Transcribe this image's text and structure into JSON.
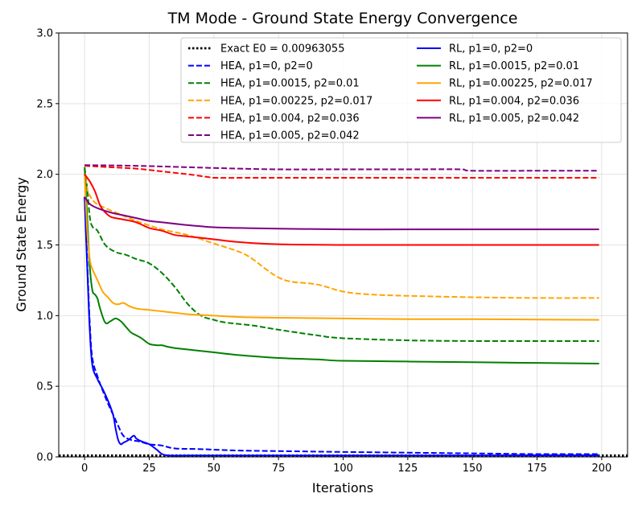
{
  "chart_data": {
    "type": "line",
    "title": "TM Mode - Ground State Energy Convergence",
    "xlabel": "Iterations",
    "ylabel": "Ground State Energy",
    "xlim": [
      -10,
      210
    ],
    "ylim": [
      0,
      3.0
    ],
    "xticks": [
      0,
      25,
      50,
      75,
      100,
      125,
      150,
      175,
      200
    ],
    "yticks": [
      0.0,
      0.5,
      1.0,
      1.5,
      2.0,
      2.5,
      3.0
    ],
    "xtick_labels": [
      "0",
      "25",
      "50",
      "75",
      "100",
      "125",
      "150",
      "175",
      "200"
    ],
    "ytick_labels": [
      "0.0",
      "0.5",
      "1.0",
      "1.5",
      "2.0",
      "2.5",
      "3.0"
    ],
    "grid": true,
    "legend_position": "top-right",
    "exact": {
      "name": "Exact E0 = 0.00963055",
      "value": 0.00963055,
      "color": "#000000",
      "style": "dotted"
    },
    "series": [
      {
        "name": "HEA, p1=0, p2=0",
        "color": "#0000ff",
        "style": "dashed",
        "x": [
          0,
          1,
          2,
          3,
          5,
          7,
          9,
          11,
          13,
          15,
          18,
          21,
          25,
          30,
          35,
          45,
          60,
          80,
          100,
          125,
          150,
          175,
          199
        ],
        "y": [
          1.84,
          1.4,
          0.95,
          0.7,
          0.57,
          0.47,
          0.38,
          0.3,
          0.22,
          0.15,
          0.12,
          0.11,
          0.09,
          0.08,
          0.06,
          0.055,
          0.045,
          0.04,
          0.035,
          0.03,
          0.025,
          0.02,
          0.02
        ]
      },
      {
        "name": "HEA, p1=0.0015, p2=0.01",
        "color": "#008000",
        "style": "dashed",
        "x": [
          0,
          1,
          2,
          3,
          5,
          8,
          12,
          16,
          20,
          25,
          30,
          35,
          40,
          45,
          50,
          55,
          65,
          75,
          90,
          100,
          125,
          150,
          175,
          199
        ],
        "y": [
          2.05,
          1.9,
          1.7,
          1.63,
          1.6,
          1.5,
          1.45,
          1.43,
          1.4,
          1.37,
          1.3,
          1.2,
          1.08,
          1.0,
          0.97,
          0.95,
          0.93,
          0.9,
          0.86,
          0.84,
          0.825,
          0.82,
          0.82,
          0.82
        ]
      },
      {
        "name": "HEA, p1=0.00225, p2=0.017",
        "color": "#ffa500",
        "style": "dashed",
        "x": [
          0,
          1,
          2,
          4,
          7,
          12,
          20,
          30,
          40,
          50,
          60,
          65,
          70,
          75,
          80,
          90,
          100,
          110,
          125,
          150,
          175,
          199
        ],
        "y": [
          2.03,
          1.9,
          1.85,
          1.8,
          1.77,
          1.73,
          1.67,
          1.61,
          1.57,
          1.51,
          1.45,
          1.4,
          1.33,
          1.27,
          1.24,
          1.22,
          1.17,
          1.15,
          1.14,
          1.13,
          1.125,
          1.125
        ]
      },
      {
        "name": "HEA, p1=0.004, p2=0.036",
        "color": "#ff0000",
        "style": "dashed",
        "x": [
          0,
          10,
          20,
          30,
          40,
          48,
          50,
          60,
          75,
          100,
          125,
          150,
          175,
          199
        ],
        "y": [
          2.06,
          2.05,
          2.04,
          2.02,
          2.0,
          1.98,
          1.975,
          1.975,
          1.975,
          1.975,
          1.975,
          1.975,
          1.975,
          1.975
        ]
      },
      {
        "name": "HEA, p1=0.005, p2=0.042",
        "color": "#800080",
        "style": "dashed",
        "x": [
          0,
          20,
          40,
          60,
          75,
          100,
          125,
          145,
          150,
          175,
          199
        ],
        "y": [
          2.065,
          2.06,
          2.05,
          2.04,
          2.035,
          2.035,
          2.035,
          2.035,
          2.025,
          2.025,
          2.025
        ]
      },
      {
        "name": "RL, p1=0, p2=0",
        "color": "#0000ff",
        "style": "solid",
        "x": [
          0,
          1,
          2,
          3,
          5,
          7,
          9,
          11,
          12,
          13,
          14,
          15,
          17,
          19,
          20,
          22,
          25,
          28,
          30,
          33,
          40,
          50,
          75,
          100,
          125,
          150,
          175,
          199
        ],
        "y": [
          1.84,
          1.35,
          0.9,
          0.65,
          0.55,
          0.48,
          0.4,
          0.3,
          0.2,
          0.12,
          0.09,
          0.1,
          0.12,
          0.15,
          0.13,
          0.11,
          0.09,
          0.05,
          0.02,
          0.01,
          0.01,
          0.01,
          0.01,
          0.01,
          0.01,
          0.01,
          0.01,
          0.01
        ]
      },
      {
        "name": "RL, p1=0.0015, p2=0.01",
        "color": "#008000",
        "style": "solid",
        "x": [
          0,
          1,
          2,
          3,
          4,
          5,
          6,
          8,
          10,
          12,
          14,
          16,
          18,
          20,
          22,
          25,
          28,
          30,
          32,
          35,
          40,
          50,
          60,
          75,
          90,
          100,
          125,
          150,
          175,
          199
        ],
        "y": [
          2.05,
          1.7,
          1.35,
          1.18,
          1.15,
          1.12,
          1.05,
          0.95,
          0.96,
          0.98,
          0.96,
          0.92,
          0.88,
          0.86,
          0.84,
          0.8,
          0.79,
          0.79,
          0.78,
          0.77,
          0.76,
          0.74,
          0.72,
          0.7,
          0.69,
          0.68,
          0.675,
          0.67,
          0.665,
          0.66
        ]
      },
      {
        "name": "RL, p1=0.00225, p2=0.017",
        "color": "#ffa500",
        "style": "solid",
        "x": [
          0,
          1,
          2,
          3,
          5,
          7,
          9,
          11,
          13,
          15,
          17,
          20,
          25,
          30,
          35,
          40,
          50,
          60,
          75,
          100,
          125,
          150,
          175,
          199
        ],
        "y": [
          2.0,
          1.6,
          1.4,
          1.33,
          1.25,
          1.17,
          1.13,
          1.09,
          1.08,
          1.09,
          1.07,
          1.05,
          1.04,
          1.03,
          1.02,
          1.01,
          1.0,
          0.99,
          0.985,
          0.98,
          0.975,
          0.975,
          0.972,
          0.97
        ]
      },
      {
        "name": "RL, p1=0.004, p2=0.036",
        "color": "#ff0000",
        "style": "solid",
        "x": [
          0,
          2,
          4,
          6,
          8,
          10,
          12,
          15,
          20,
          25,
          30,
          35,
          40,
          50,
          60,
          75,
          100,
          125,
          150,
          175,
          199
        ],
        "y": [
          2.0,
          1.95,
          1.88,
          1.78,
          1.73,
          1.7,
          1.69,
          1.68,
          1.66,
          1.62,
          1.6,
          1.57,
          1.56,
          1.54,
          1.52,
          1.505,
          1.5,
          1.5,
          1.5,
          1.5,
          1.5
        ]
      },
      {
        "name": "RL, p1=0.005, p2=0.042",
        "color": "#800080",
        "style": "solid",
        "x": [
          0,
          2,
          5,
          10,
          15,
          20,
          25,
          30,
          40,
          50,
          60,
          75,
          100,
          125,
          150,
          175,
          199
        ],
        "y": [
          1.84,
          1.79,
          1.76,
          1.73,
          1.71,
          1.69,
          1.67,
          1.66,
          1.64,
          1.625,
          1.62,
          1.615,
          1.61,
          1.61,
          1.61,
          1.61,
          1.61
        ]
      }
    ]
  }
}
